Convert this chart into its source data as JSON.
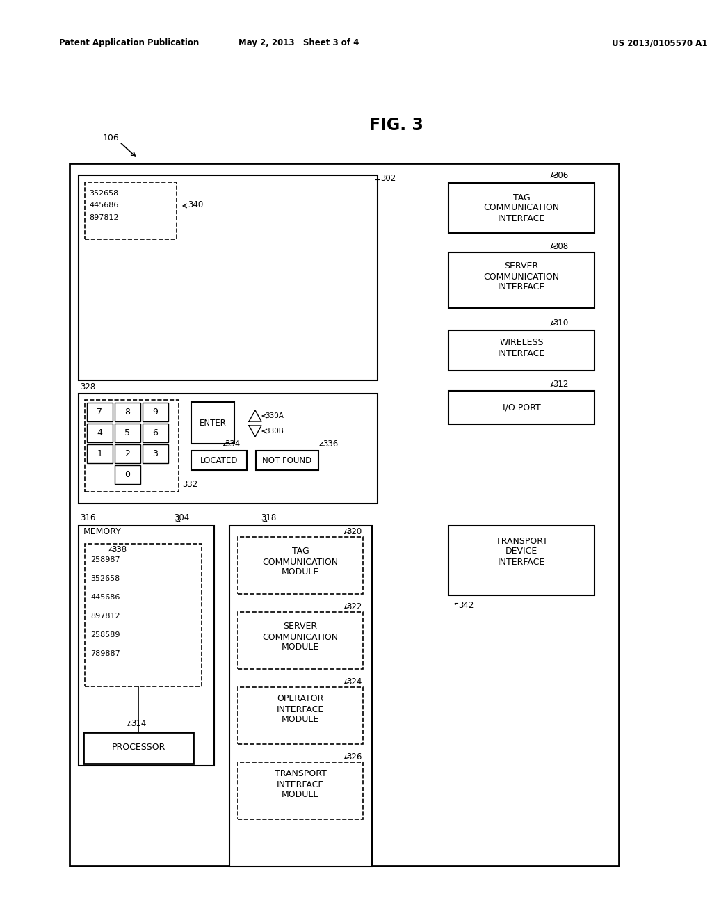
{
  "title": "FIG. 3",
  "header_left": "Patent Application Publication",
  "header_center": "May 2, 2013   Sheet 3 of 4",
  "header_right": "US 2013/0105570 A1",
  "background": "#ffffff"
}
